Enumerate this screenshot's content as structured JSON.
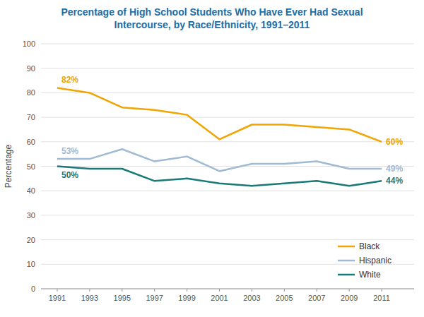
{
  "chart_data": {
    "type": "line",
    "title": "Percentage of High School Students Who Have Ever Had Sexual\nIntercourse, by Race/Ethnicity, 1991–2011",
    "y_label": "Percentage",
    "x": [
      1991,
      1993,
      1995,
      1997,
      1999,
      2001,
      2003,
      2005,
      2007,
      2009,
      2011
    ],
    "series": [
      {
        "name": "Black",
        "color": "#F0A500",
        "values": [
          82,
          80,
          74,
          73,
          71,
          61,
          67,
          67,
          66,
          65,
          60
        ],
        "value_labels": [
          "82%",
          null,
          null,
          null,
          null,
          null,
          null,
          null,
          null,
          null,
          "60%"
        ]
      },
      {
        "name": "Hispanic",
        "color": "#A0BAD4",
        "values": [
          53,
          53,
          57,
          52,
          54,
          48,
          51,
          51,
          52,
          49,
          49
        ],
        "value_labels": [
          "53%",
          null,
          null,
          null,
          null,
          null,
          null,
          null,
          null,
          null,
          "49%"
        ]
      },
      {
        "name": "White",
        "color": "#1A7A78",
        "values": [
          50,
          49,
          49,
          44,
          45,
          43,
          42,
          43,
          44,
          42,
          44
        ],
        "value_labels": [
          "50%",
          null,
          null,
          null,
          null,
          null,
          null,
          null,
          null,
          null,
          "44%"
        ]
      }
    ],
    "xlim": [
      1990,
      2013
    ],
    "xticks": [
      1991,
      1993,
      1995,
      1997,
      1999,
      2001,
      2003,
      2005,
      2007,
      2009,
      2011
    ],
    "ylim": [
      0,
      100
    ],
    "yticks": [
      0,
      10,
      20,
      30,
      40,
      50,
      60,
      70,
      80,
      90,
      100
    ],
    "grid": true,
    "legend": "lower right"
  }
}
